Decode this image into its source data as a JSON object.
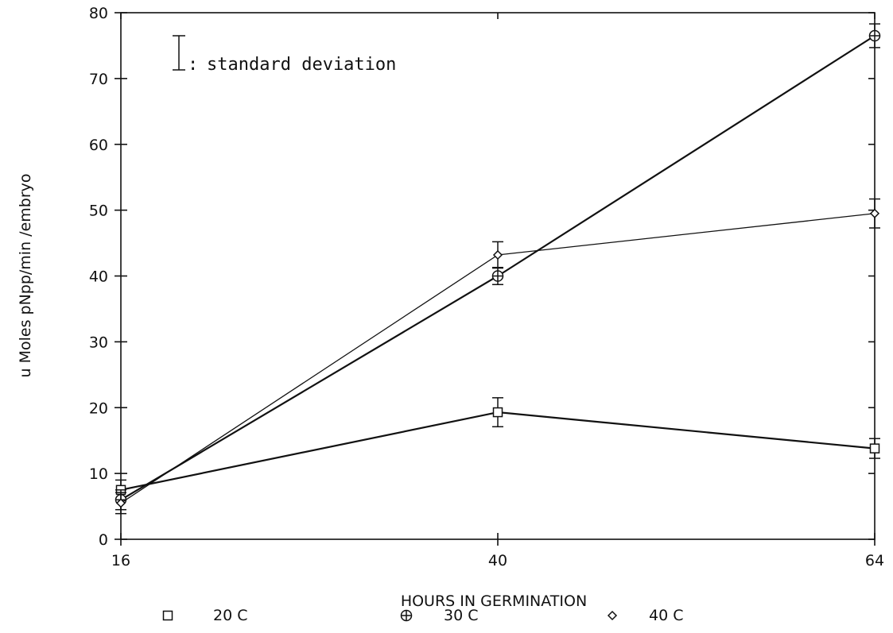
{
  "chart_data": {
    "type": "line",
    "x": [
      16,
      40,
      64
    ],
    "x_ticks": [
      "16",
      "40",
      "64"
    ],
    "xlabel": "HOURS IN GERMINATION",
    "ylabel": "u Moles pNpp/min /embryo",
    "ylim": [
      0,
      80
    ],
    "y_ticks": [
      "0",
      "10",
      "20",
      "30",
      "40",
      "50",
      "60",
      "70",
      "80"
    ],
    "grid": false,
    "annotation": "standard deviation",
    "series": [
      {
        "name": "20 C",
        "marker": "square",
        "values": [
          7.5,
          19.3,
          13.8
        ],
        "sd": [
          1.5,
          2.2,
          1.5
        ]
      },
      {
        "name": "30 C",
        "marker": "circle-plus",
        "values": [
          6.0,
          40.0,
          76.5
        ],
        "sd": [
          1.5,
          1.3,
          1.8
        ]
      },
      {
        "name": "40 C",
        "marker": "diamond",
        "values": [
          5.5,
          43.2,
          49.5
        ],
        "sd": [
          1.6,
          2.0,
          2.2
        ]
      }
    ]
  }
}
